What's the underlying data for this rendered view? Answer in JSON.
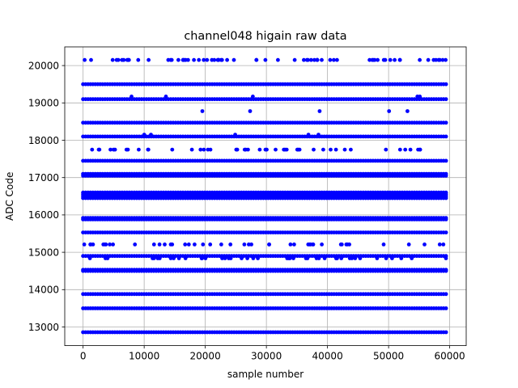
{
  "chart_data": {
    "type": "scatter",
    "title": "channel048 higain raw data",
    "xlabel": "sample number",
    "ylabel": "ADC Code",
    "xlim": [
      -3000,
      62700
    ],
    "ylim": [
      12500,
      20500
    ],
    "xticks": [
      0,
      10000,
      20000,
      30000,
      40000,
      50000,
      60000
    ],
    "yticks": [
      13000,
      14000,
      15000,
      16000,
      17000,
      18000,
      19000,
      20000
    ],
    "grid": true,
    "marker_color": "#0000ff",
    "x_range_of_samples": [
      0,
      59400
    ],
    "levels": [
      {
        "y": 12860,
        "density": "dense"
      },
      {
        "y": 13500,
        "density": "dense"
      },
      {
        "y": 13880,
        "density": "dense"
      },
      {
        "y": 14500,
        "density": "dense"
      },
      {
        "y": 14530,
        "density": "dense"
      },
      {
        "y": 14840,
        "density": "sparse"
      },
      {
        "y": 14900,
        "density": "dense"
      },
      {
        "y": 15210,
        "density": "sparse"
      },
      {
        "y": 15530,
        "density": "dense"
      },
      {
        "y": 15880,
        "density": "dense"
      },
      {
        "y": 15920,
        "density": "dense"
      },
      {
        "y": 16450,
        "density": "dense"
      },
      {
        "y": 16500,
        "density": "dense"
      },
      {
        "y": 16550,
        "density": "dense"
      },
      {
        "y": 16600,
        "density": "dense"
      },
      {
        "y": 17050,
        "density": "dense"
      },
      {
        "y": 17100,
        "density": "dense"
      },
      {
        "y": 17450,
        "density": "dense"
      },
      {
        "y": 17750,
        "density": "sparse"
      },
      {
        "y": 18100,
        "density": "dense"
      },
      {
        "y": 18150,
        "density": "rare"
      },
      {
        "y": 18470,
        "density": "dense"
      },
      {
        "y": 18780,
        "density": "rare"
      },
      {
        "y": 19100,
        "density": "dense"
      },
      {
        "y": 19170,
        "density": "rare"
      },
      {
        "y": 19500,
        "density": "dense"
      },
      {
        "y": 20150,
        "density": "medium"
      }
    ]
  }
}
